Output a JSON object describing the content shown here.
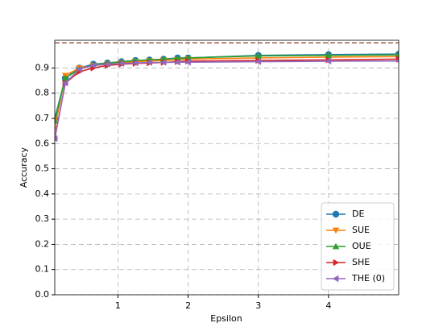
{
  "chart_data": {
    "type": "line",
    "x_label": "Epsilon",
    "y_label": "Accuracy",
    "x": [
      0.1,
      0.25,
      0.45,
      0.65,
      0.85,
      1.05,
      1.25,
      1.45,
      1.65,
      1.85,
      2,
      3,
      4,
      5
    ],
    "series": [
      {
        "name": "DE",
        "color": "#1f77b4",
        "marker": "circle",
        "values": [
          0.7,
          0.86,
          0.9,
          0.915,
          0.92,
          0.925,
          0.93,
          0.932,
          0.935,
          0.94,
          0.94,
          0.95,
          0.953,
          0.955
        ]
      },
      {
        "name": "SUE",
        "color": "#ff7f0e",
        "marker": "triangle-down",
        "values": [
          0.66,
          0.87,
          0.9,
          0.91,
          0.915,
          0.92,
          0.925,
          0.928,
          0.93,
          0.932,
          0.935,
          0.94,
          0.943,
          0.945
        ]
      },
      {
        "name": "OUE",
        "color": "#2ca02c",
        "marker": "triangle-up",
        "values": [
          0.69,
          0.86,
          0.895,
          0.912,
          0.92,
          0.924,
          0.93,
          0.932,
          0.935,
          0.938,
          0.94,
          0.948,
          0.95,
          0.952
        ]
      },
      {
        "name": "SHE",
        "color": "#d62728",
        "marker": "triangle-right",
        "values": [
          0.62,
          0.84,
          0.885,
          0.9,
          0.91,
          0.915,
          0.918,
          0.92,
          0.922,
          0.925,
          0.927,
          0.93,
          0.932,
          0.935
        ]
      },
      {
        "name": "THE (0)",
        "color": "#9467bd",
        "marker": "triangle-left",
        "values": [
          0.62,
          0.84,
          0.895,
          0.91,
          0.915,
          0.918,
          0.92,
          0.922,
          0.922,
          0.923,
          0.923,
          0.925,
          0.927,
          0.928
        ]
      }
    ],
    "reference_line": {
      "value": 1.0,
      "color": "#8c3b2b"
    },
    "xlim": [
      0.1,
      5
    ],
    "ylim": [
      0,
      1.01
    ],
    "xticks": [
      1,
      2,
      3,
      4
    ],
    "yticks": [
      {
        "value": 0,
        "label": "0.0"
      },
      0.1,
      0.2,
      0.3,
      0.4,
      0.5,
      0.6,
      0.7,
      0.8,
      0.9
    ],
    "grid": true,
    "legend_position": "lower right"
  }
}
